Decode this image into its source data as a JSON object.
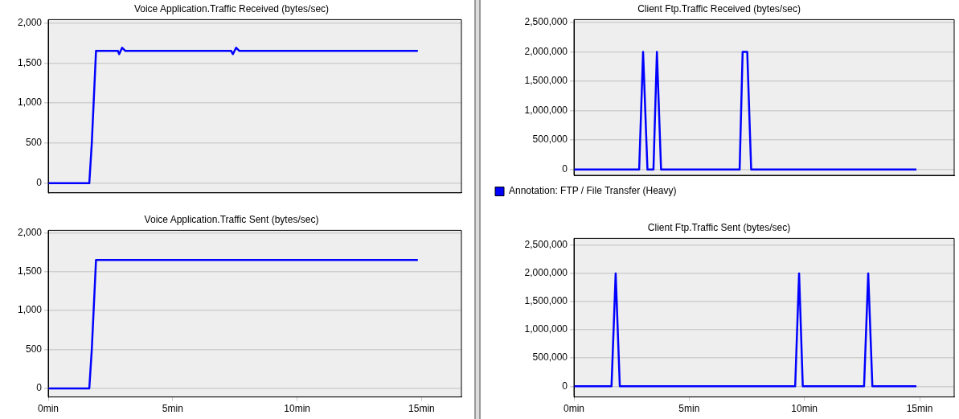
{
  "chart_data": [
    {
      "type": "line",
      "title": "Voice Application.Traffic Received (bytes/sec)",
      "xlim": [
        0,
        16.6
      ],
      "ylim": [
        -120,
        2040
      ],
      "yticks": [
        {
          "value": 0,
          "label": "0"
        },
        {
          "value": 500,
          "label": "500"
        },
        {
          "value": 1000,
          "label": "1,000"
        },
        {
          "value": 1500,
          "label": "1,500"
        },
        {
          "value": 2000,
          "label": "2,000"
        }
      ],
      "grid": "y",
      "tick_labels": "y",
      "legend": false,
      "series": [
        {
          "color": "#0000ff",
          "x": [
            0,
            1.65,
            1.75,
            1.92,
            2.8,
            2.85,
            2.97,
            3.1,
            7.35,
            7.42,
            7.55,
            7.68,
            14.85
          ],
          "values": [
            0,
            0,
            500,
            1650,
            1650,
            1610,
            1690,
            1650,
            1650,
            1610,
            1690,
            1650,
            1650
          ]
        }
      ]
    },
    {
      "type": "line",
      "title": "Voice Application.Traffic Sent (bytes/sec)",
      "xlim": [
        0,
        16.6
      ],
      "xticks": [
        {
          "value": 0,
          "label": "0min"
        },
        {
          "value": 5,
          "label": "5min"
        },
        {
          "value": 10,
          "label": "10min"
        },
        {
          "value": 15,
          "label": "15min"
        }
      ],
      "ylim": [
        -110,
        2030
      ],
      "yticks": [
        {
          "value": 0,
          "label": "0"
        },
        {
          "value": 500,
          "label": "500"
        },
        {
          "value": 1000,
          "label": "1,000"
        },
        {
          "value": 1500,
          "label": "1,500"
        },
        {
          "value": 2000,
          "label": "2,000"
        }
      ],
      "grid": "y",
      "legend": false,
      "series": [
        {
          "color": "#0000ff",
          "x": [
            0,
            1.65,
            1.75,
            1.92,
            14.85
          ],
          "values": [
            0,
            0,
            500,
            1650,
            1650
          ]
        }
      ]
    },
    {
      "type": "line",
      "title": "Client Ftp.Traffic Received (bytes/sec)",
      "xlim": [
        0,
        16.5
      ],
      "ylim": [
        -100000,
        2550000
      ],
      "yticks": [
        {
          "value": 0,
          "label": "0"
        },
        {
          "value": 500000,
          "label": "500,000"
        },
        {
          "value": 1000000,
          "label": "1,000,000"
        },
        {
          "value": 1500000,
          "label": "1,500,000"
        },
        {
          "value": 2000000,
          "label": "2,000,000"
        },
        {
          "value": 2500000,
          "label": "2,500,000"
        }
      ],
      "grid": "y",
      "tick_labels": "y",
      "legend": "bottom",
      "series": [
        {
          "name": "Annotation: FTP / File Transfer (Heavy)",
          "color": "#0000ff",
          "x": [
            0,
            2.83,
            3.0,
            3.19,
            3.45,
            3.6,
            3.78,
            7.19,
            7.32,
            7.52,
            7.69,
            14.86
          ],
          "values": [
            0,
            0,
            2000000,
            0,
            0,
            2000000,
            0,
            0,
            2000000,
            2000000,
            0,
            0
          ]
        }
      ]
    },
    {
      "type": "line",
      "title": "Client Ftp.Traffic Sent (bytes/sec)",
      "xlim": [
        0,
        16.5
      ],
      "xticks": [
        {
          "value": 0,
          "label": "0min"
        },
        {
          "value": 5,
          "label": "5min"
        },
        {
          "value": 10,
          "label": "10min"
        },
        {
          "value": 15,
          "label": "15min"
        }
      ],
      "ylim": [
        -190000,
        2620000
      ],
      "yticks": [
        {
          "value": 0,
          "label": "0"
        },
        {
          "value": 500000,
          "label": "500,000"
        },
        {
          "value": 1000000,
          "label": "1,000,000"
        },
        {
          "value": 1500000,
          "label": "1,500,000"
        },
        {
          "value": 2000000,
          "label": "2,000,000"
        },
        {
          "value": 2500000,
          "label": "2,500,000"
        }
      ],
      "grid": "y",
      "legend": false,
      "series": [
        {
          "color": "#0000ff",
          "x": [
            0,
            1.63,
            1.81,
            1.99,
            9.6,
            9.77,
            9.93,
            12.59,
            12.77,
            12.95,
            14.86
          ],
          "values": [
            0,
            0,
            2000000,
            0,
            0,
            2000000,
            0,
            0,
            2000000,
            0,
            0
          ]
        }
      ]
    }
  ]
}
